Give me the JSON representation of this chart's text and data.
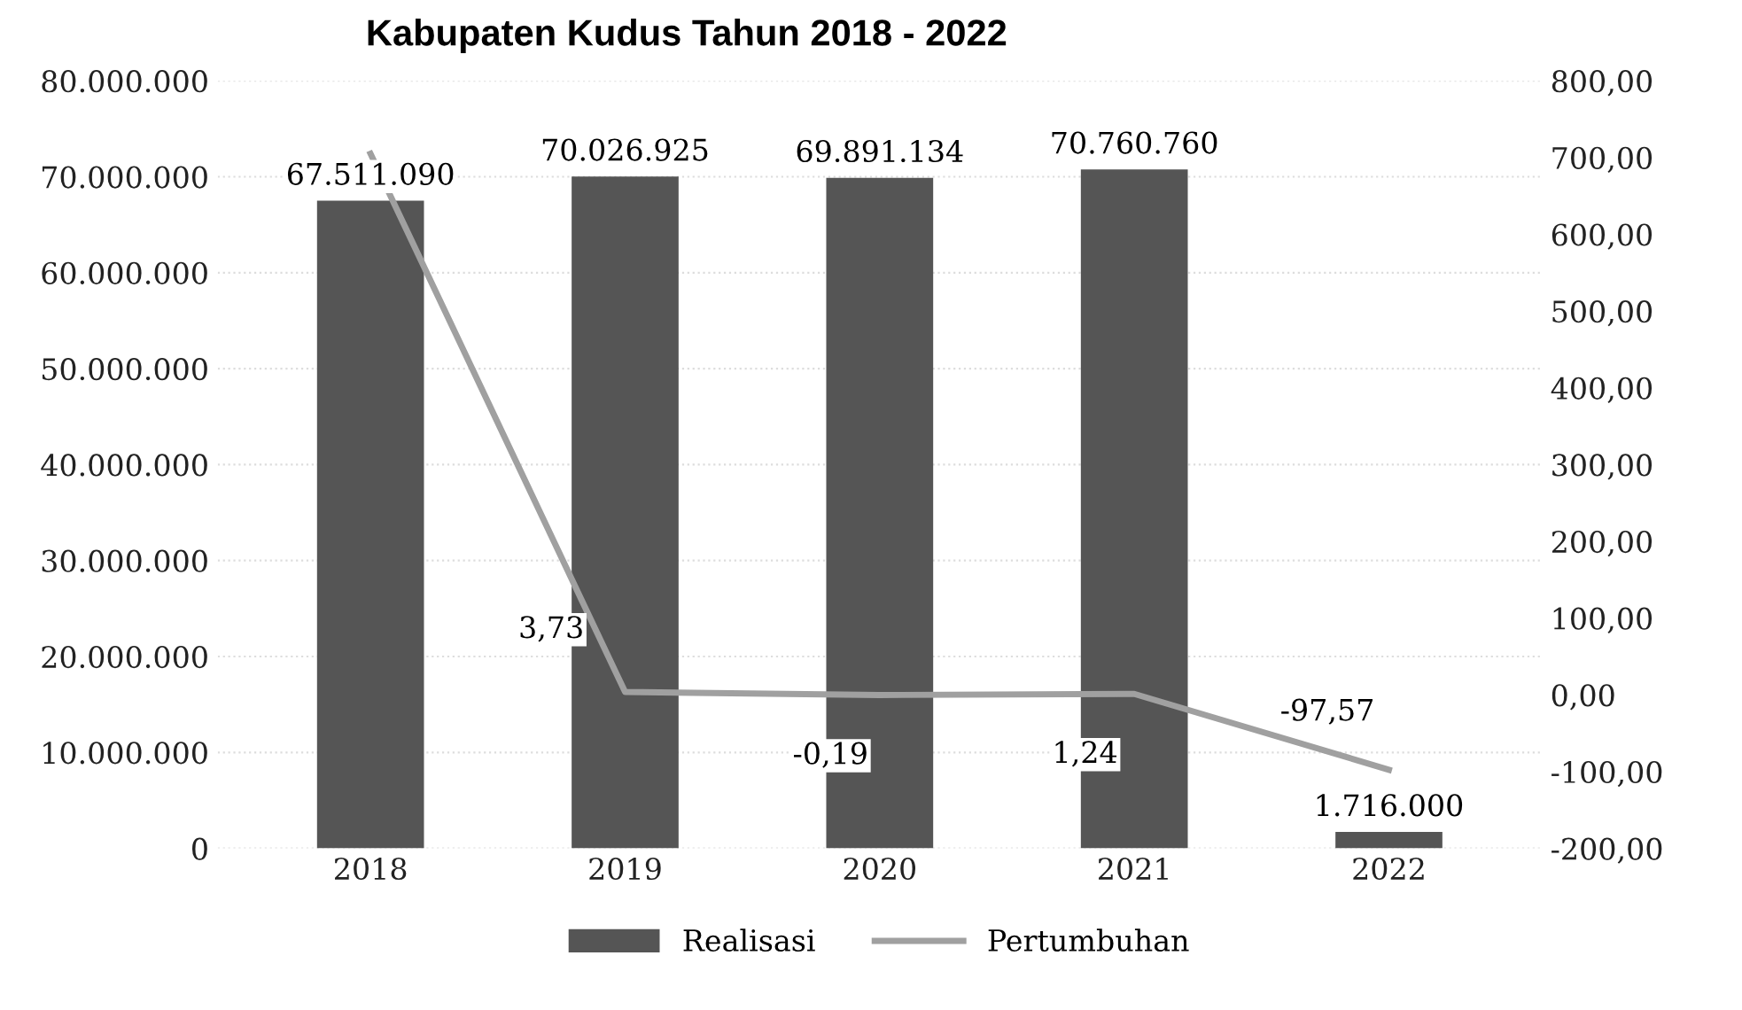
{
  "chart_data": {
    "type": "bar",
    "title": "Kabupaten Kudus Tahun 2018 - 2022",
    "categories": [
      "2018",
      "2019",
      "2020",
      "2021",
      "2022"
    ],
    "series": [
      {
        "name": "Realisasi",
        "color": "#555555",
        "values": [
          67511090,
          70026925,
          69891134,
          70760760,
          1716000
        ],
        "value_labels": [
          "67.511.090",
          "70.026.925",
          "69.891.134",
          "70.760.760",
          "1.716.000"
        ]
      },
      {
        "name": "Pertumbuhan",
        "type": "line",
        "axis": "y2",
        "color": "#a0a0a0",
        "values": [
          705,
          3.73,
          -0.19,
          1.24,
          -97.57
        ],
        "value_labels": [
          null,
          "3,73",
          "-0,19",
          "1,24",
          "-97,57"
        ]
      }
    ],
    "ylim": [
      0,
      80000000
    ],
    "yticks": [
      {
        "value": 0,
        "label": "0"
      },
      {
        "value": 10000000,
        "label": "10.000.000"
      },
      {
        "value": 20000000,
        "label": "20.000.000"
      },
      {
        "value": 30000000,
        "label": "30.000.000"
      },
      {
        "value": 40000000,
        "label": "40.000.000"
      },
      {
        "value": 50000000,
        "label": "50.000.000"
      },
      {
        "value": 60000000,
        "label": "60.000.000"
      },
      {
        "value": 70000000,
        "label": "70.000.000"
      },
      {
        "value": 80000000,
        "label": "80.000.000"
      }
    ],
    "y2lim": [
      -200,
      800
    ],
    "y2ticks": [
      {
        "value": -200,
        "label": "-200,00"
      },
      {
        "value": -100,
        "label": "-100,00"
      },
      {
        "value": 0,
        "label": "0,00"
      },
      {
        "value": 100,
        "label": "100,00"
      },
      {
        "value": 200,
        "label": "200,00"
      },
      {
        "value": 300,
        "label": "300,00"
      },
      {
        "value": 400,
        "label": "400,00"
      },
      {
        "value": 500,
        "label": "500,00"
      },
      {
        "value": 600,
        "label": "600,00"
      },
      {
        "value": 700,
        "label": "700,00"
      },
      {
        "value": 800,
        "label": "800,00"
      }
    ],
    "grid": "y",
    "legend": "bottom",
    "marker": "none",
    "line_style": "solid"
  }
}
